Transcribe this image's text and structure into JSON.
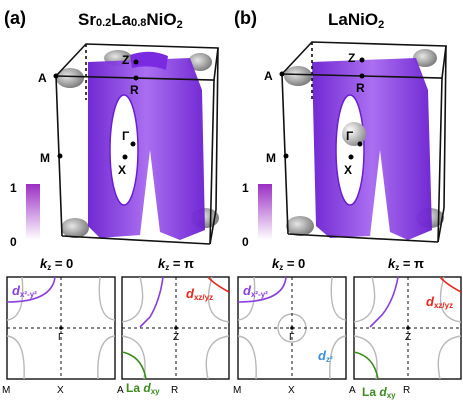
{
  "panels": [
    {
      "letter": "(a)",
      "title_main": "Sr",
      "title_sub1": "0.2",
      "title_mid": "La",
      "title_sub2": "0.8",
      "title_end": "NiO",
      "title_sub3": "2",
      "points": {
        "Z": "Z",
        "A": "A",
        "R": "R",
        "G": "Γ",
        "M": "M",
        "X": "X"
      },
      "colorbar": {
        "max": "1",
        "min": "0"
      }
    },
    {
      "letter": "(b)",
      "title_main": "LaNiO",
      "title_sub3": "2",
      "points": {
        "Z": "Z",
        "A": "A",
        "R": "R",
        "G": "Γ",
        "M": "M",
        "X": "X"
      },
      "colorbar": {
        "max": "1",
        "min": "0"
      }
    }
  ],
  "cuts": [
    {
      "kz": "k",
      "kz_sub": "z",
      "kz_eq": " = 0",
      "orbital": "d",
      "orbital_sub": "x²-y²",
      "center": "Γ",
      "bl": "M",
      "bm": "X"
    },
    {
      "kz": "k",
      "kz_sub": "z",
      "kz_eq": " = π",
      "orbital": "d",
      "orbital_sub": "xz/yz",
      "center": "Z",
      "bl": "A",
      "bm": "R",
      "la_label": "La ",
      "la_orb": "d",
      "la_sub": "xy"
    },
    {
      "kz": "k",
      "kz_sub": "z",
      "kz_eq": " = 0",
      "orbital": "d",
      "orbital_sub": "x²-y²",
      "center": "Γ",
      "bl": "M",
      "bm": "X",
      "dz": "d",
      "dz_sub": "z²"
    },
    {
      "kz": "k",
      "kz_sub": "z",
      "kz_eq": " = π",
      "orbital": "d",
      "orbital_sub": "xz/yz",
      "center": "Z",
      "bl": "A",
      "bm": "R",
      "la_label": "La ",
      "la_orb": "d",
      "la_sub": "xy"
    }
  ],
  "colors": {
    "purple": "#8a3ee0",
    "red": "#e8261c",
    "green": "#3d8a1f",
    "blue": "#3a8fd9",
    "gray": "#b8b8b8"
  }
}
